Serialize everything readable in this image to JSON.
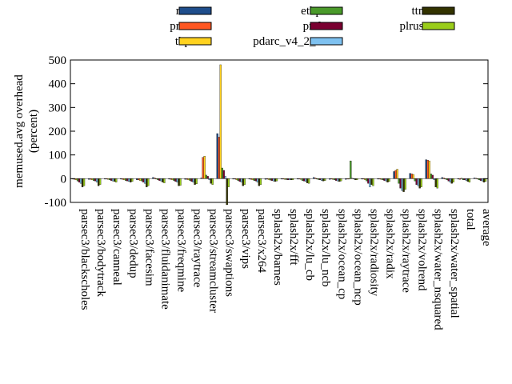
{
  "chart_data": {
    "type": "bar",
    "title": "",
    "xlabel": "",
    "ylabel": "memused.avg overhead (percent)",
    "ylabel_lines": [
      "memused.avg overhead",
      "(percent)"
    ],
    "ylim": [
      -100,
      500
    ],
    "yticks": [
      -100,
      0,
      100,
      200,
      300,
      400,
      500
    ],
    "grid": false,
    "legend_position": "top",
    "categories": [
      "parsec3/blackscholes",
      "parsec3/bodytrack",
      "parsec3/canneal",
      "parsec3/dedup",
      "parsec3/facesim",
      "parsec3/fluidanimate",
      "parsec3/freqmine",
      "parsec3/raytrace",
      "parsec3/streamcluster",
      "parsec3/swaptions",
      "parsec3/vips",
      "parsec3/x264",
      "splash2x/barnes",
      "splash2x/fft",
      "splash2x/lu_cb",
      "splash2x/lu_ncb",
      "splash2x/ocean_cp",
      "splash2x/ocean_ncp",
      "splash2x/radiosity",
      "splash2x/radix",
      "splash2x/raytrace",
      "splash2x/volrend",
      "splash2x/water_nsquared",
      "splash2x/water_spatial",
      "total",
      "average"
    ],
    "series": [
      {
        "name": "rec",
        "color": "#1f4e8c",
        "values": [
          -2,
          -3,
          -1,
          -2,
          -5,
          5,
          -2,
          -3,
          3,
          190,
          -2,
          -2,
          -3,
          -2,
          -2,
          5,
          -3,
          -3,
          -2,
          -2,
          30,
          22,
          80,
          5,
          -2,
          3
        ]
      },
      {
        "name": "prec",
        "color": "#ff5722",
        "values": [
          -3,
          -3,
          -2,
          -3,
          -5,
          3,
          -3,
          -3,
          90,
          175,
          -2,
          -3,
          -2,
          -2,
          -2,
          3,
          -2,
          -2,
          -2,
          -2,
          35,
          20,
          78,
          3,
          -3,
          2
        ]
      },
      {
        "name": "thp",
        "color": "#ffd21f",
        "values": [
          -5,
          -5,
          -3,
          -5,
          -8,
          0,
          -5,
          -5,
          95,
          480,
          -5,
          -5,
          -4,
          -3,
          -3,
          0,
          -3,
          -2,
          -5,
          -3,
          40,
          18,
          75,
          0,
          2,
          0
        ]
      },
      {
        "name": "ethp",
        "color": "#4a9a2a",
        "values": [
          -10,
          -8,
          -5,
          -8,
          -10,
          -5,
          -8,
          -8,
          15,
          45,
          -8,
          -8,
          -6,
          -4,
          -8,
          -4,
          -5,
          75,
          -10,
          -5,
          -20,
          -10,
          20,
          -5,
          -5,
          -5
        ]
      },
      {
        "name": "prcl",
        "color": "#7a0030",
        "values": [
          -15,
          -10,
          -8,
          -10,
          -15,
          -8,
          -12,
          -12,
          10,
          35,
          -12,
          -10,
          -8,
          -5,
          -10,
          -5,
          -8,
          2,
          -20,
          -8,
          -40,
          -25,
          15,
          -10,
          -5,
          -8
        ]
      },
      {
        "name": "pdarc_v4_2_2",
        "color": "#7ec1f0",
        "values": [
          -20,
          -15,
          -10,
          -12,
          -20,
          -10,
          -15,
          -15,
          -5,
          10,
          -15,
          -15,
          -10,
          -5,
          -12,
          -8,
          -10,
          -2,
          -35,
          -10,
          -50,
          -30,
          -5,
          -15,
          -8,
          -10
        ]
      },
      {
        "name": "ttmo",
        "color": "#333300",
        "values": [
          -35,
          -30,
          -12,
          -15,
          -35,
          -15,
          -30,
          -25,
          -20,
          -110,
          -30,
          -30,
          -12,
          -5,
          -18,
          -10,
          -12,
          -5,
          -25,
          -15,
          -55,
          -40,
          -35,
          -20,
          -12,
          -15
        ]
      },
      {
        "name": "plrus-2",
        "color": "#9acd1a",
        "values": [
          -30,
          -25,
          -15,
          -12,
          -30,
          -18,
          -28,
          -22,
          -25,
          -35,
          -25,
          -25,
          -10,
          -5,
          -20,
          -8,
          -10,
          -5,
          -30,
          -12,
          -45,
          -35,
          -40,
          -15,
          -15,
          -12
        ]
      }
    ]
  }
}
